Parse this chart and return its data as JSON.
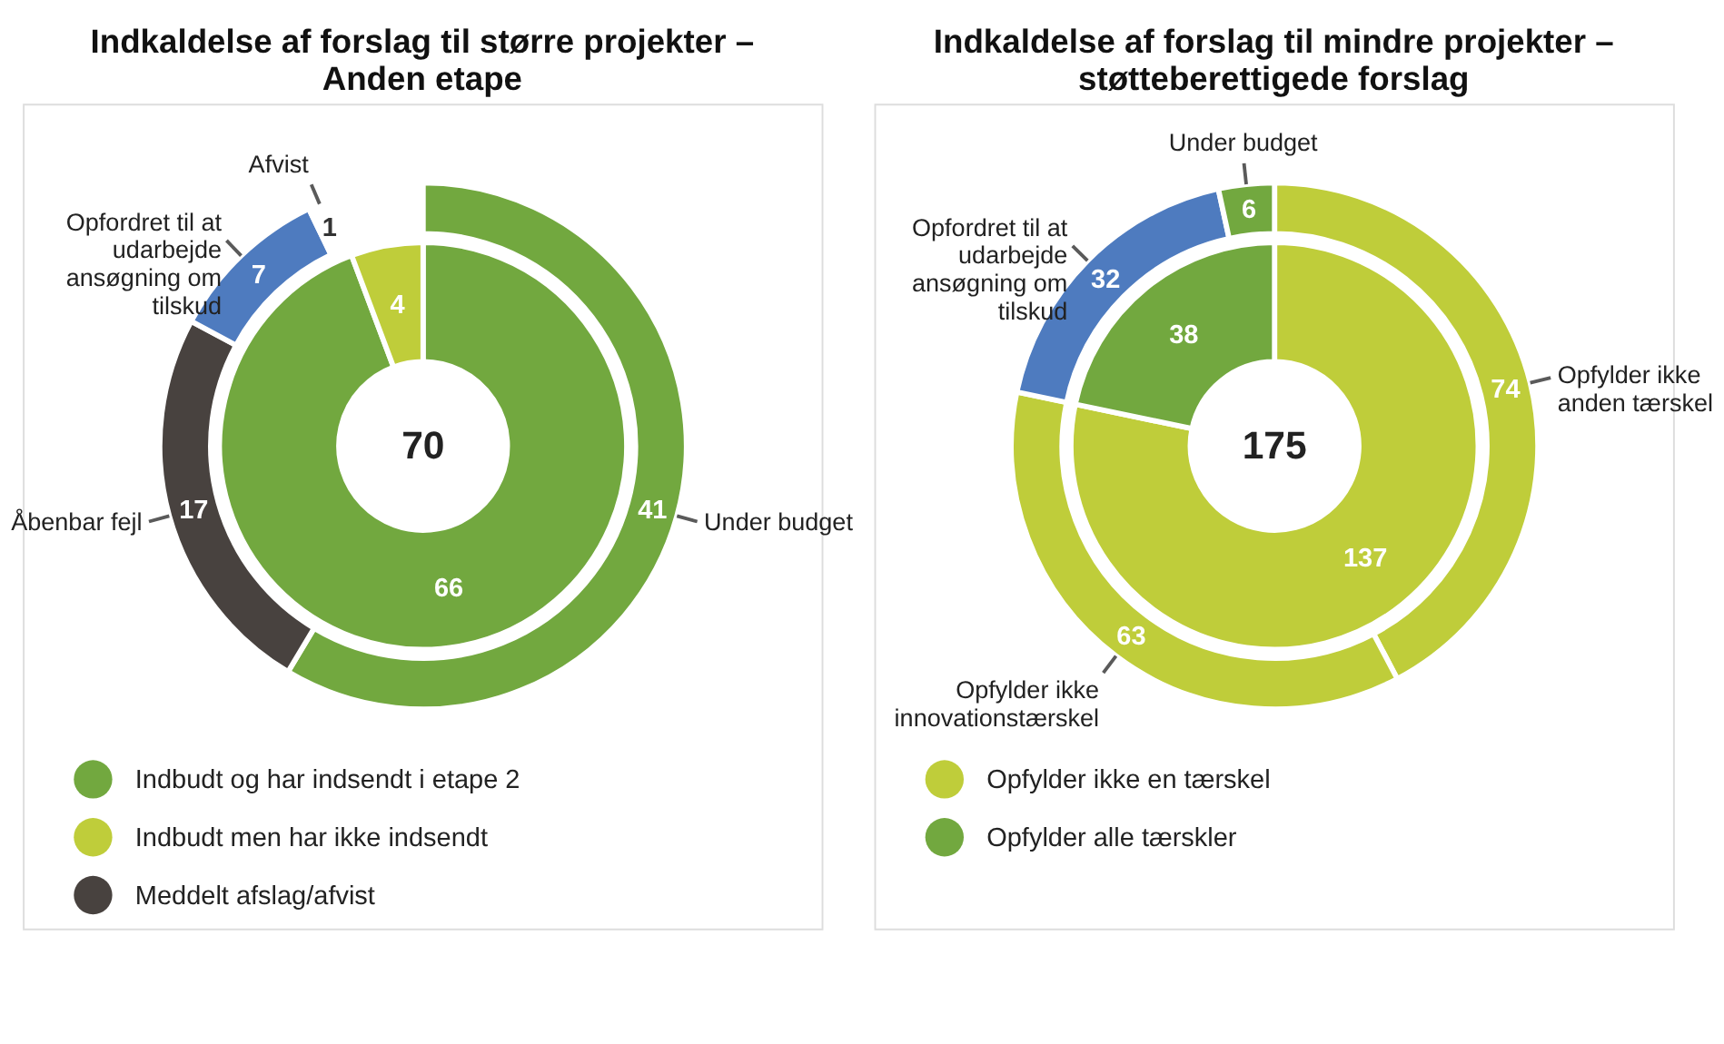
{
  "chart_data": [
    {
      "type": "donut",
      "title": "Indkaldelse af forslag til større projekter – Anden etape",
      "legend": "bottom",
      "data_labels": true,
      "categories": [
        "Indbudt og har indsendt i etape 2",
        "Indbudt men har ikke indsendt",
        null,
        "Meddelt afslag/afvist",
        null,
        null
      ],
      "series": [
        {
          "values": [
            66,
            4,
            null,
            null,
            null,
            null
          ],
          "colors": [
            "#72a83f",
            "#bfcd3a",
            null,
            null,
            null,
            null
          ]
        },
        {
          "values": [
            null,
            null,
            41,
            17,
            7,
            1
          ],
          "colors": [
            null,
            null,
            "#72a83f",
            "#48423f",
            "#4e7bbf",
            "#ffffff"
          ]
        }
      ],
      "annotations": [
        "70",
        "Under budget",
        "Åbenbar fejl",
        "Opfordret til at udarbejde ansøgning om tilskud",
        "Afvist"
      ]
    },
    {
      "type": "donut",
      "title": "Indkaldelse af forslag til mindre projekter – støtteberettigede forslag",
      "legend": "bottom",
      "data_labels": true,
      "categories": [
        "Opfylder ikke en tærskel",
        "Opfylder alle tærskler",
        null,
        null,
        null,
        null
      ],
      "series": [
        {
          "values": [
            137,
            38,
            null,
            null,
            null,
            null
          ],
          "colors": [
            "#bfcd3a",
            "#72a83f",
            null,
            null,
            null,
            null
          ]
        },
        {
          "values": [
            null,
            null,
            74,
            63,
            32,
            6
          ],
          "colors": [
            null,
            null,
            "#bfcd3a",
            "#bfcd3a",
            "#4e7bbf",
            "#72a83f"
          ]
        }
      ],
      "annotations": [
        "175",
        "Opfylder ikke anden tærskel",
        "Opfylder ikke innovationstærskel",
        "Opfordret til at udarbejde ansøgning om tilskud",
        "Under budget"
      ]
    }
  ]
}
